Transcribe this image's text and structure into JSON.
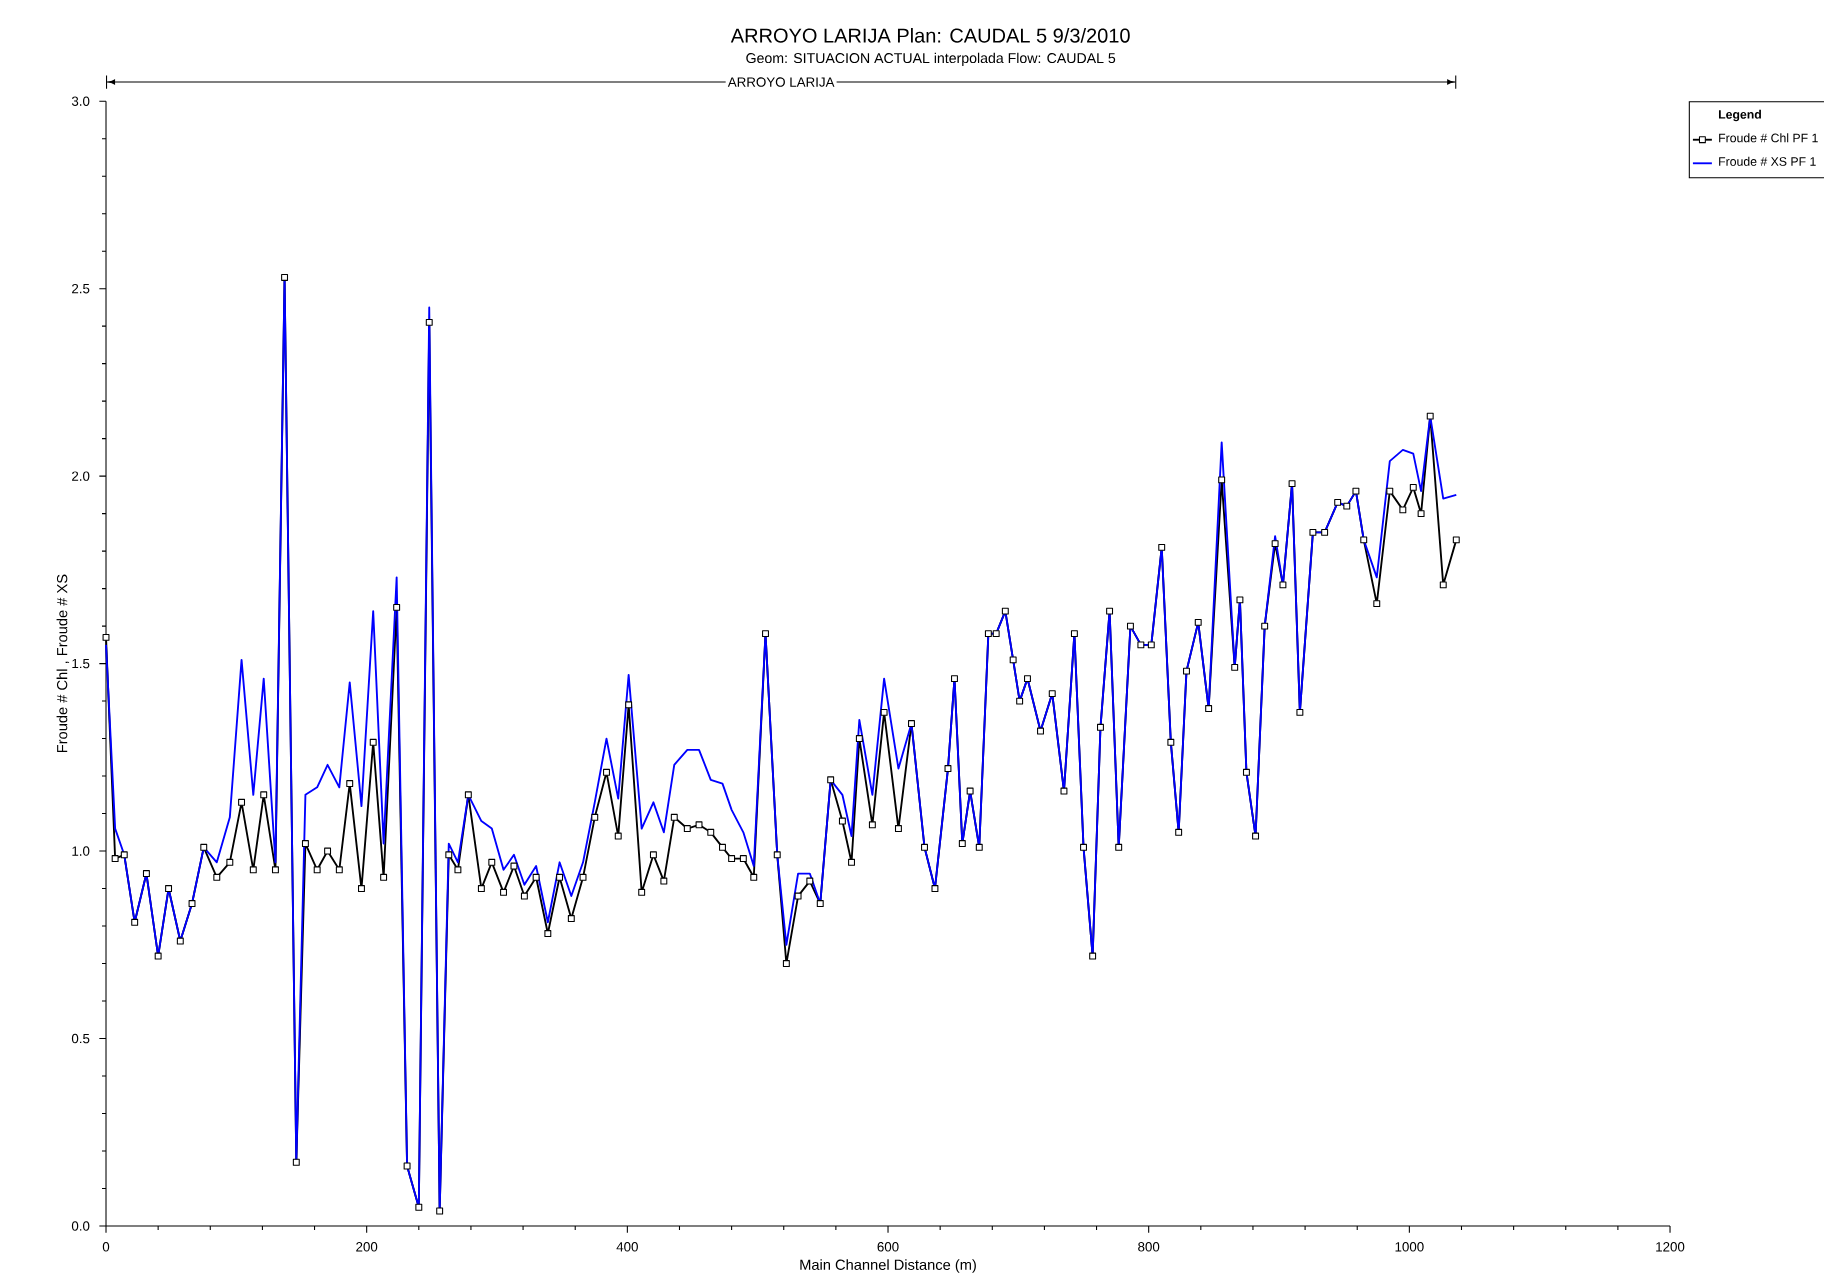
{
  "chart_data": {
    "type": "line",
    "title": "ARROYO LARIJA      Plan: CAUDAL 5     9/3/2010",
    "subtitle": "Geom: SITUACION ACTUAL interpolada    Flow: CAUDAL 5",
    "xlabel": "Main Channel Distance (m)",
    "ylabel": "Froude # Chl , Froude # XS",
    "legend_title": "Legend",
    "legend": "top right",
    "x": [
      0,
      7,
      14,
      22,
      31,
      40,
      48,
      57,
      66,
      75,
      85,
      95,
      104,
      113,
      121,
      130,
      137,
      146,
      153,
      162,
      170,
      179,
      187,
      196,
      205,
      213,
      223,
      231,
      240,
      248,
      256,
      263,
      270,
      278,
      288,
      296,
      305,
      313,
      321,
      330,
      339,
      348,
      357,
      366,
      375,
      384,
      393,
      401,
      411,
      420,
      428,
      436,
      446,
      455,
      464,
      473,
      480,
      489,
      497,
      506,
      515,
      522,
      531,
      540,
      548,
      556,
      565,
      572,
      578,
      588,
      597,
      608,
      618,
      628,
      636,
      646,
      651,
      657,
      663,
      670,
      677,
      683,
      690,
      696,
      701,
      707,
      717,
      726,
      735,
      743,
      750,
      757,
      763,
      770,
      777,
      786,
      794,
      802,
      810,
      817,
      823,
      829,
      838,
      846,
      856,
      866,
      870,
      875,
      882,
      889,
      897,
      903,
      910,
      916,
      926,
      935,
      945,
      952,
      959,
      965,
      975,
      985,
      995,
      1003,
      1009,
      1016,
      1026,
      1036
    ],
    "series": [
      {
        "name": "Froude # Chl PF 1",
        "color": "#000000",
        "marker": "square",
        "values": [
          1.57,
          0.98,
          0.99,
          0.81,
          0.94,
          0.72,
          0.9,
          0.76,
          0.86,
          1.01,
          0.93,
          0.97,
          1.13,
          0.95,
          1.15,
          0.95,
          2.53,
          0.17,
          1.02,
          0.95,
          1.0,
          0.95,
          1.18,
          0.9,
          1.29,
          0.93,
          1.65,
          0.16,
          0.05,
          2.41,
          0.04,
          0.99,
          0.95,
          1.15,
          0.9,
          0.97,
          0.89,
          0.96,
          0.88,
          0.93,
          0.78,
          0.93,
          0.82,
          0.93,
          1.09,
          1.21,
          1.04,
          1.39,
          0.89,
          0.99,
          0.92,
          1.09,
          1.06,
          1.07,
          1.05,
          1.01,
          0.98,
          0.98,
          0.93,
          1.58,
          0.99,
          0.7,
          0.88,
          0.92,
          0.86,
          1.19,
          1.08,
          0.97,
          1.3,
          1.07,
          1.37,
          1.06,
          1.34,
          1.01,
          0.9,
          1.22,
          1.46,
          1.02,
          1.16,
          1.01,
          1.58,
          1.58,
          1.64,
          1.51,
          1.4,
          1.46,
          1.32,
          1.42,
          1.16,
          1.58,
          1.01,
          0.72,
          1.33,
          1.64,
          1.01,
          1.6,
          1.55,
          1.55,
          1.81,
          1.29,
          1.05,
          1.48,
          1.61,
          1.38,
          1.99,
          1.49,
          1.67,
          1.21,
          1.04,
          1.6,
          1.82,
          1.71,
          1.98,
          1.37,
          1.85,
          1.85,
          1.93,
          1.92,
          1.96,
          1.83,
          1.66,
          1.96,
          1.91,
          1.97,
          1.9,
          2.16,
          1.71,
          1.83
        ]
      },
      {
        "name": "Froude # XS PF 1",
        "color": "#0000ff",
        "marker": "none",
        "values": [
          1.55,
          1.06,
          0.99,
          0.81,
          0.94,
          0.72,
          0.9,
          0.76,
          0.86,
          1.01,
          0.97,
          1.09,
          1.51,
          1.15,
          1.46,
          0.97,
          2.53,
          0.17,
          1.15,
          1.17,
          1.23,
          1.17,
          1.45,
          1.12,
          1.64,
          1.02,
          1.73,
          0.16,
          0.05,
          2.45,
          0.04,
          1.02,
          0.97,
          1.15,
          1.08,
          1.06,
          0.95,
          0.99,
          0.91,
          0.96,
          0.81,
          0.97,
          0.88,
          0.97,
          1.13,
          1.3,
          1.14,
          1.47,
          1.06,
          1.13,
          1.05,
          1.23,
          1.27,
          1.27,
          1.19,
          1.18,
          1.11,
          1.05,
          0.96,
          1.58,
          0.99,
          0.75,
          0.94,
          0.94,
          0.86,
          1.19,
          1.15,
          1.04,
          1.35,
          1.15,
          1.46,
          1.22,
          1.34,
          1.01,
          0.9,
          1.22,
          1.46,
          1.02,
          1.16,
          1.01,
          1.58,
          1.58,
          1.64,
          1.51,
          1.4,
          1.46,
          1.32,
          1.42,
          1.16,
          1.58,
          1.01,
          0.72,
          1.33,
          1.64,
          1.01,
          1.6,
          1.55,
          1.55,
          1.81,
          1.29,
          1.05,
          1.48,
          1.61,
          1.38,
          2.09,
          1.49,
          1.67,
          1.21,
          1.04,
          1.6,
          1.84,
          1.71,
          1.98,
          1.37,
          1.85,
          1.85,
          1.93,
          1.92,
          1.96,
          1.83,
          1.73,
          2.04,
          2.07,
          2.06,
          1.96,
          2.16,
          1.94,
          1.95
        ]
      }
    ],
    "xlim": [
      0,
      1200
    ],
    "ylim": [
      0,
      3.0
    ],
    "xticks": [
      0,
      200,
      400,
      600,
      800,
      1000,
      1200
    ],
    "yticks": [
      {
        "value": 0,
        "label": "0.0"
      },
      {
        "value": 0.5,
        "label": "0.5"
      },
      {
        "value": 1.0,
        "label": "1.0"
      },
      {
        "value": 1.5,
        "label": "1.5"
      },
      {
        "value": 2.0,
        "label": "2.0"
      },
      {
        "value": 2.5,
        "label": "2.5"
      },
      {
        "value": 3.0,
        "label": "3.0"
      }
    ],
    "annotations": [
      "ARROYO LARIJA"
    ]
  }
}
